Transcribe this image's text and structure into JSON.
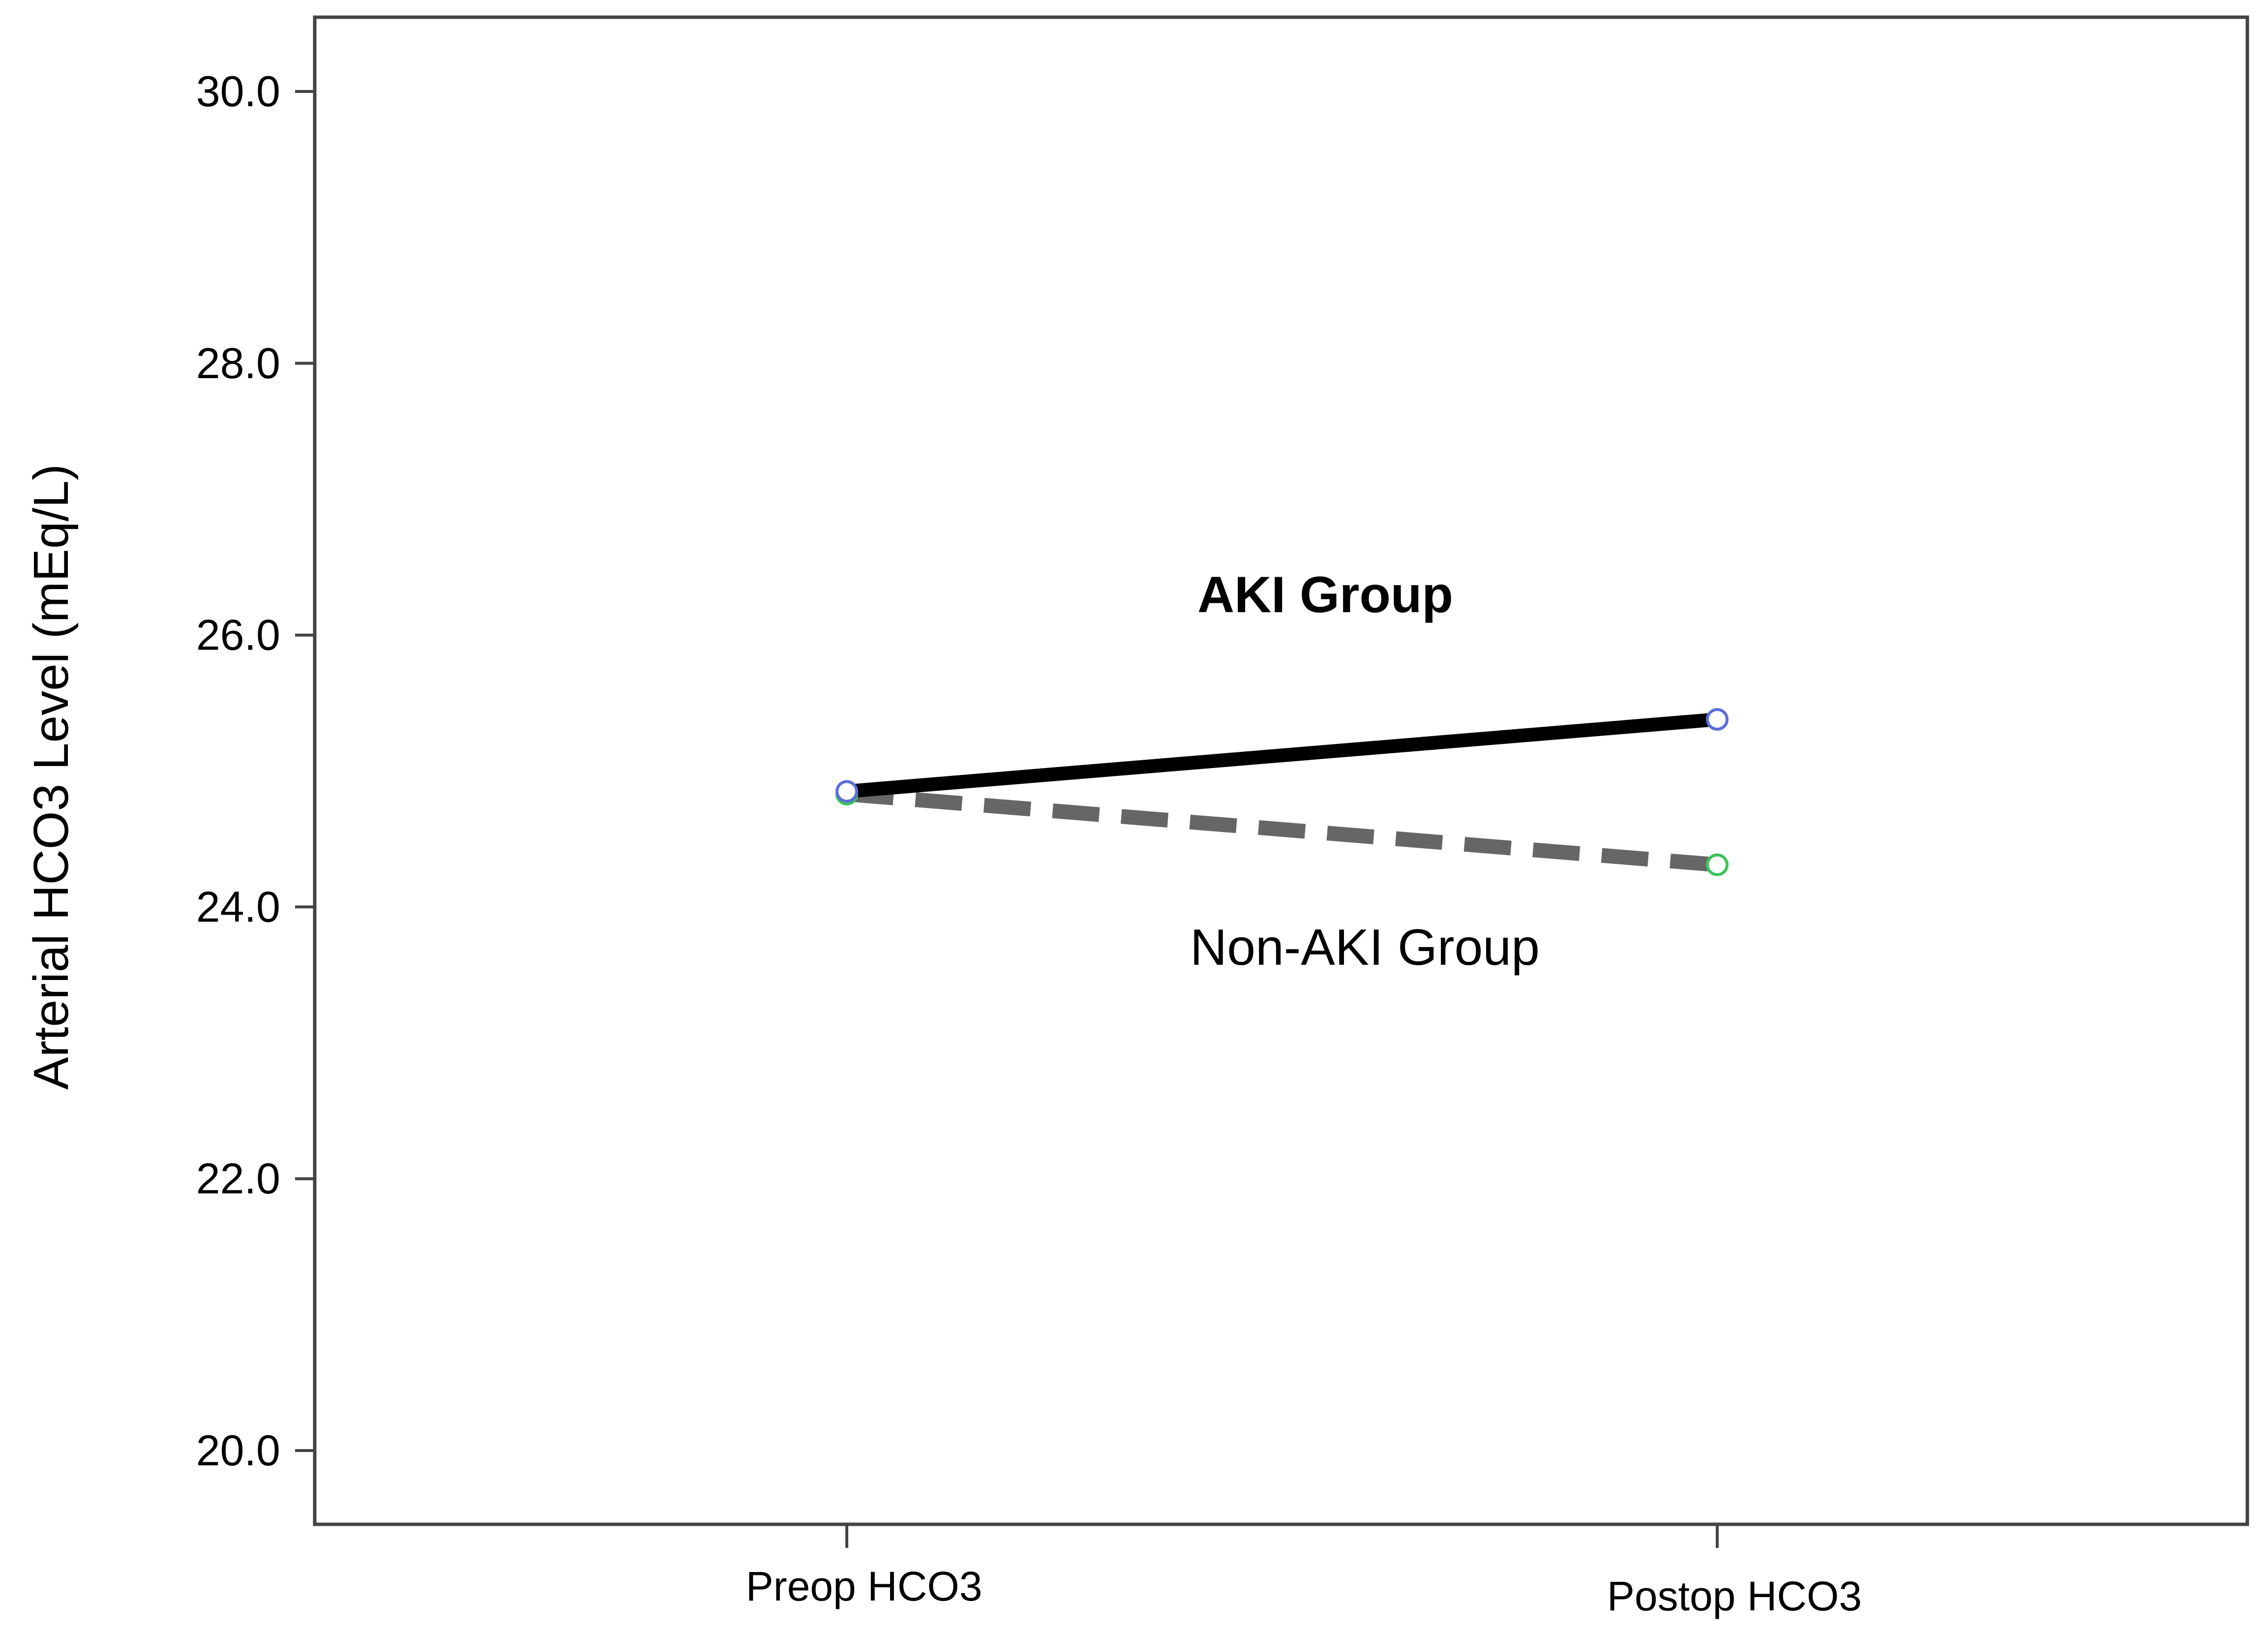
{
  "chart_data": {
    "type": "line",
    "categories": [
      "Preop HCO3",
      "Postop HCO3"
    ],
    "series": [
      {
        "name": "AKI Group",
        "values": [
          24.85,
          25.38
        ],
        "color": "#000000",
        "style": "solid",
        "marker_color": "#5a6fd8"
      },
      {
        "name": "Non-AKI Group",
        "values": [
          24.83,
          24.31
        ],
        "color": "#666666",
        "style": "dashed",
        "marker_color": "#3cc45a"
      }
    ],
    "ylabel": "Arterial HCO3 Level (mEq/L)",
    "xlabel": "",
    "ylim": [
      19.5,
      30.5
    ],
    "yticks": [
      "20.0",
      "22.0",
      "24.0",
      "26.0",
      "28.0",
      "30.0"
    ],
    "ytick_values": [
      20,
      22,
      24,
      26,
      28,
      30
    ],
    "grid": false,
    "legend": "none"
  }
}
